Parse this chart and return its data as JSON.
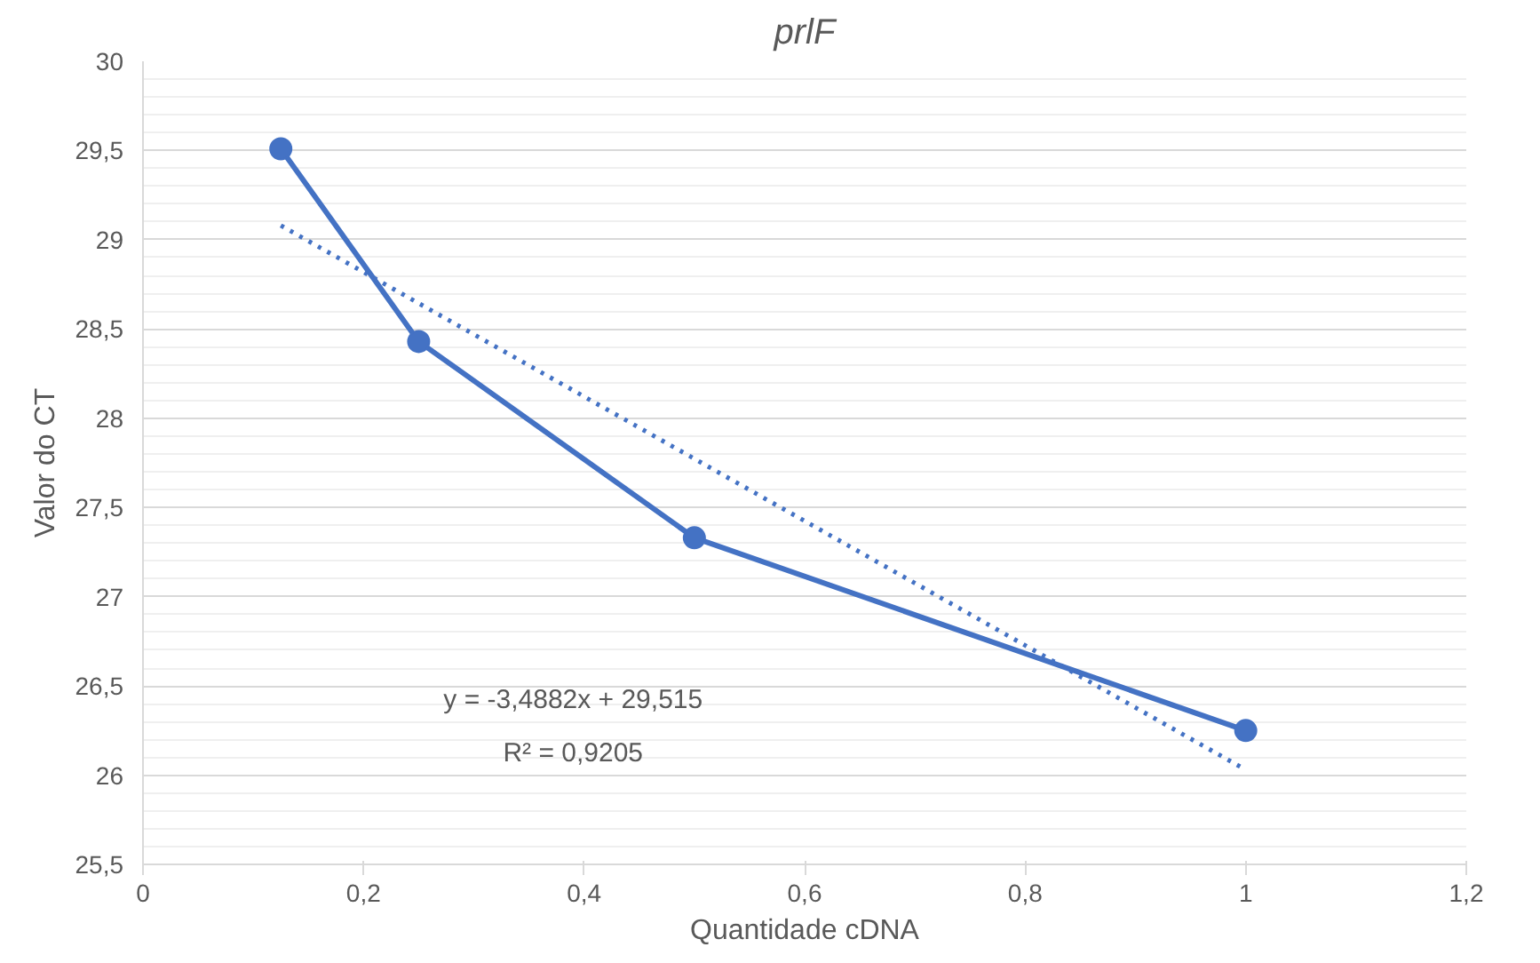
{
  "chart_data": {
    "type": "line",
    "title": "prlF",
    "xlabel": "Quantidade cDNA",
    "ylabel": "Valor do CT",
    "x": [
      0.125,
      0.25,
      0.5,
      1
    ],
    "series": [
      {
        "color": "#4472c4",
        "values": [
          29.51,
          28.43,
          27.33,
          26.25
        ],
        "marker": "circle",
        "line_style": "solid"
      },
      {
        "type": "line",
        "color": "#4472c4",
        "x": [
          0.125,
          1
        ],
        "values": [
          29.08,
          26.03
        ],
        "marker": "none",
        "line_style": "dotted"
      }
    ],
    "annotations": [
      "y = -3,4882x + 29,515",
      "R² = 0,9205"
    ],
    "xlim": [
      0,
      1.2
    ],
    "ylim": [
      25.5,
      30
    ],
    "xticks": [
      0,
      {
        "value": 0.2,
        "label": "0,2"
      },
      {
        "value": 0.4,
        "label": "0,4"
      },
      {
        "value": 0.6,
        "label": "0,6"
      },
      {
        "value": 0.8,
        "label": "0,8"
      },
      1,
      {
        "value": 1.2,
        "label": "1,2"
      }
    ],
    "yticks": [
      {
        "value": 25.5,
        "label": "25,5"
      },
      26,
      {
        "value": 26.5,
        "label": "26,5"
      },
      27,
      {
        "value": 27.5,
        "label": "27,5"
      },
      28,
      {
        "value": 28.5,
        "label": "28,5"
      },
      29,
      {
        "value": 29.5,
        "label": "29,5"
      },
      30
    ],
    "grid": "y"
  }
}
